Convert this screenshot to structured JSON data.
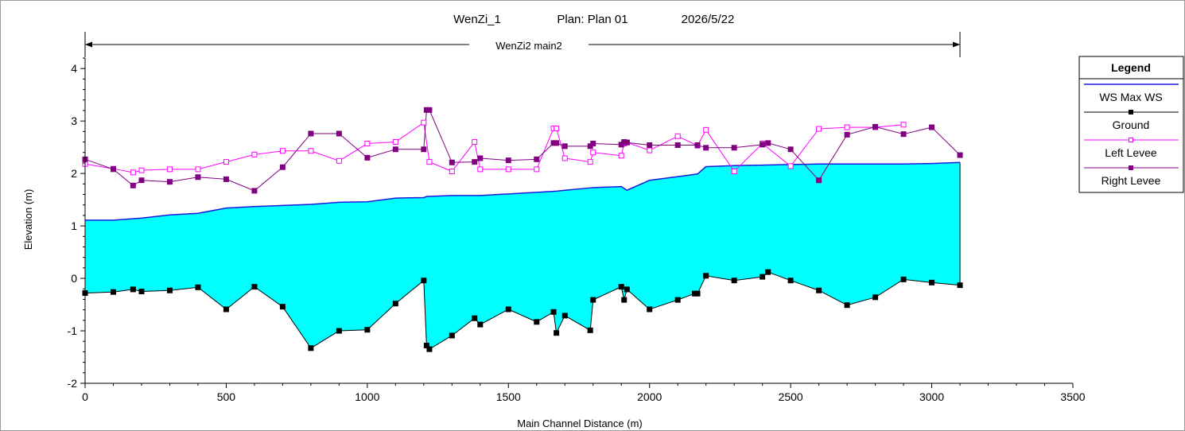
{
  "chart_data": {
    "type": "area",
    "title": {
      "name": "WenZi_1",
      "plan": "Plan:  Plan 01",
      "date": "2026/5/22"
    },
    "reach_label": "WenZi2 main2",
    "xlabel": "Main Channel Distance (m)",
    "ylabel": "Elevation (m)",
    "xlim": [
      0,
      3500
    ],
    "ylim": [
      -2,
      4.2
    ],
    "xticks": [
      0,
      500,
      1000,
      1500,
      2000,
      2500,
      3000,
      3500
    ],
    "yticks": [
      -2,
      -1,
      0,
      1,
      2,
      3,
      4
    ],
    "reach_extent": [
      0,
      3100
    ],
    "legend": {
      "title": "Legend",
      "position": "right",
      "entries": [
        "WS  Max WS",
        "Ground",
        "Left Levee",
        "Right Levee"
      ]
    },
    "colors": {
      "ws_line": "#1a1adf",
      "water_fill": "#00ffff",
      "ground": "#000000",
      "left_levee": "#ff00ff",
      "right_levee": "#800080"
    },
    "series": [
      {
        "name": "WS  Max WS",
        "x": [
          0,
          100,
          200,
          300,
          400,
          500,
          600,
          700,
          800,
          900,
          1000,
          1100,
          1200,
          1210,
          1300,
          1400,
          1500,
          1600,
          1665,
          1700,
          1800,
          1900,
          1920,
          2000,
          2100,
          2170,
          2200,
          2300,
          2400,
          2500,
          2600,
          2700,
          2800,
          2900,
          3000,
          3100
        ],
        "y": [
          1.11,
          1.11,
          1.15,
          1.21,
          1.24,
          1.34,
          1.37,
          1.39,
          1.41,
          1.45,
          1.46,
          1.53,
          1.54,
          1.56,
          1.58,
          1.58,
          1.61,
          1.64,
          1.66,
          1.68,
          1.73,
          1.75,
          1.68,
          1.87,
          1.94,
          1.99,
          2.13,
          2.15,
          2.16,
          2.17,
          2.18,
          2.18,
          2.18,
          2.18,
          2.19,
          2.21
        ]
      },
      {
        "name": "Ground",
        "x": [
          0,
          100,
          170,
          200,
          300,
          400,
          500,
          600,
          700,
          800,
          900,
          1000,
          1100,
          1200,
          1210,
          1220,
          1300,
          1380,
          1400,
          1500,
          1600,
          1660,
          1670,
          1700,
          1790,
          1800,
          1900,
          1910,
          1920,
          2000,
          2100,
          2160,
          2170,
          2200,
          2300,
          2400,
          2420,
          2500,
          2600,
          2700,
          2800,
          2900,
          3000,
          3100
        ],
        "y": [
          -0.28,
          -0.26,
          -0.21,
          -0.25,
          -0.23,
          -0.17,
          -0.59,
          -0.16,
          -0.54,
          -1.33,
          -1.0,
          -0.98,
          -0.48,
          -0.04,
          -1.28,
          -1.35,
          -1.09,
          -0.76,
          -0.88,
          -0.59,
          -0.83,
          -0.64,
          -1.04,
          -0.71,
          -0.99,
          -0.41,
          -0.16,
          -0.41,
          -0.21,
          -0.59,
          -0.41,
          -0.29,
          -0.29,
          0.05,
          -0.04,
          0.03,
          0.12,
          -0.04,
          -0.23,
          -0.51,
          -0.36,
          -0.02,
          -0.08,
          -0.13
        ]
      },
      {
        "name": "Left Levee",
        "x": [
          0,
          100,
          170,
          200,
          300,
          400,
          500,
          600,
          700,
          800,
          900,
          1000,
          1100,
          1200,
          1220,
          1300,
          1380,
          1400,
          1500,
          1600,
          1660,
          1670,
          1700,
          1790,
          1800,
          1900,
          1910,
          1920,
          2000,
          2100,
          2170,
          2200,
          2300,
          2400,
          2500,
          2600,
          2700,
          2800,
          2900
        ],
        "y": [
          2.18,
          2.09,
          2.02,
          2.06,
          2.08,
          2.08,
          2.22,
          2.36,
          2.43,
          2.43,
          2.24,
          2.57,
          2.6,
          2.97,
          2.22,
          2.04,
          2.6,
          2.08,
          2.08,
          2.08,
          2.86,
          2.86,
          2.29,
          2.22,
          2.4,
          2.34,
          2.57,
          2.59,
          2.44,
          2.71,
          2.53,
          2.83,
          2.04,
          2.57,
          2.14,
          2.85,
          2.88,
          2.88,
          2.93
        ]
      },
      {
        "name": "Right Levee",
        "x": [
          0,
          100,
          170,
          200,
          300,
          400,
          500,
          600,
          700,
          800,
          900,
          1000,
          1100,
          1200,
          1210,
          1220,
          1300,
          1380,
          1400,
          1500,
          1600,
          1660,
          1670,
          1700,
          1790,
          1800,
          1900,
          1910,
          1920,
          2000,
          2100,
          2170,
          2200,
          2300,
          2400,
          2420,
          2500,
          2600,
          2700,
          2800,
          2900,
          3000,
          3100
        ],
        "y": [
          2.27,
          2.08,
          1.77,
          1.87,
          1.84,
          1.93,
          1.89,
          1.67,
          2.12,
          2.76,
          2.76,
          2.3,
          2.46,
          2.46,
          3.21,
          3.21,
          2.21,
          2.22,
          2.29,
          2.25,
          2.27,
          2.58,
          2.58,
          2.52,
          2.52,
          2.57,
          2.55,
          2.6,
          2.59,
          2.54,
          2.54,
          2.54,
          2.49,
          2.49,
          2.55,
          2.58,
          2.46,
          1.87,
          2.74,
          2.89,
          2.75,
          2.88,
          2.35
        ]
      }
    ]
  }
}
